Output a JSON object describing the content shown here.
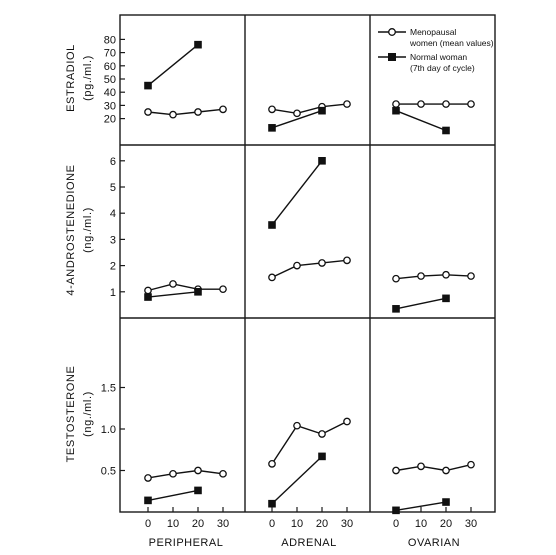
{
  "legend": {
    "menopausal_line1": "Menopausal",
    "menopausal_line2": "women (mean values)",
    "normal_line1": "Normal woman",
    "normal_line2": "(7th day of cycle)"
  },
  "column_labels": [
    "PERIPHERAL",
    "ADRENAL",
    "OVARIAN"
  ],
  "x_ticks": [
    "0",
    "10",
    "20",
    "30"
  ],
  "row_labels": [
    {
      "line1": "ESTRADIOL",
      "line2": "(pg./ml.)"
    },
    {
      "line1": "4-ANDROSTENEDIONE",
      "line2": "(ng./ml.)"
    },
    {
      "line1": "TESTOSTERONE",
      "line2": "(ng./ml.)"
    }
  ],
  "chart_data": [
    {
      "type": "line",
      "title": "",
      "ylabel": "ESTRADIOL (pg./ml.)",
      "ylim": [
        0,
        90
      ],
      "yticks": [
        "20",
        "30",
        "40",
        "50",
        "60",
        "70",
        "80"
      ],
      "ytick_values": [
        20,
        30,
        40,
        50,
        60,
        70,
        80
      ],
      "x": [
        0,
        10,
        20,
        30
      ],
      "panels": [
        {
          "name": "PERIPHERAL",
          "series": [
            {
              "name": "Menopausal women (mean values)",
              "marker": "open-circle",
              "x": [
                0,
                10,
                20,
                30
              ],
              "values": [
                25,
                23,
                25,
                27
              ]
            },
            {
              "name": "Normal woman (7th day of cycle)",
              "marker": "filled-square",
              "x": [
                0,
                20
              ],
              "values": [
                45,
                76
              ]
            }
          ]
        },
        {
          "name": "ADRENAL",
          "series": [
            {
              "name": "Menopausal women (mean values)",
              "marker": "open-circle",
              "x": [
                0,
                10,
                20,
                30
              ],
              "values": [
                27,
                24,
                29,
                31
              ]
            },
            {
              "name": "Normal woman (7th day of cycle)",
              "marker": "filled-square",
              "x": [
                0,
                20
              ],
              "values": [
                13,
                26
              ]
            }
          ]
        },
        {
          "name": "OVARIAN",
          "series": [
            {
              "name": "Menopausal women (mean values)",
              "marker": "open-circle",
              "x": [
                0,
                10,
                20,
                30
              ],
              "values": [
                31,
                31,
                31,
                31
              ]
            },
            {
              "name": "Normal woman (7th day of cycle)",
              "marker": "filled-square",
              "x": [
                0,
                20
              ],
              "values": [
                26,
                11
              ]
            }
          ]
        }
      ]
    },
    {
      "type": "line",
      "title": "",
      "ylabel": "4-ANDROSTENEDIONE (ng./ml.)",
      "ylim": [
        0,
        6.6
      ],
      "yticks": [
        "1",
        "2",
        "3",
        "4",
        "5",
        "6"
      ],
      "ytick_values": [
        1,
        2,
        3,
        4,
        5,
        6
      ],
      "x": [
        0,
        10,
        20,
        30
      ],
      "panels": [
        {
          "name": "PERIPHERAL",
          "series": [
            {
              "name": "Menopausal women (mean values)",
              "marker": "open-circle",
              "x": [
                0,
                10,
                20,
                30
              ],
              "values": [
                1.05,
                1.3,
                1.1,
                1.1
              ]
            },
            {
              "name": "Normal woman (7th day of cycle)",
              "marker": "filled-square",
              "x": [
                0,
                20
              ],
              "values": [
                0.8,
                1.0
              ]
            }
          ]
        },
        {
          "name": "ADRENAL",
          "series": [
            {
              "name": "Menopausal women (mean values)",
              "marker": "open-circle",
              "x": [
                0,
                10,
                20,
                30
              ],
              "values": [
                1.55,
                2.0,
                2.1,
                2.2
              ]
            },
            {
              "name": "Normal woman (7th day of cycle)",
              "marker": "filled-square",
              "x": [
                0,
                20
              ],
              "values": [
                3.55,
                6.0
              ]
            }
          ]
        },
        {
          "name": "OVARIAN",
          "series": [
            {
              "name": "Menopausal women (mean values)",
              "marker": "open-circle",
              "x": [
                0,
                10,
                20,
                30
              ],
              "values": [
                1.5,
                1.6,
                1.65,
                1.6
              ]
            },
            {
              "name": "Normal woman (7th day of cycle)",
              "marker": "filled-square",
              "x": [
                0,
                20
              ],
              "values": [
                0.35,
                0.75
              ]
            }
          ]
        }
      ]
    },
    {
      "type": "line",
      "title": "",
      "ylabel": "TESTOSTERONE (ng./ml.)",
      "ylim": [
        0,
        2.05
      ],
      "yticks": [
        "0.5",
        "1.0",
        "1.5"
      ],
      "ytick_values": [
        0.5,
        1.0,
        1.5
      ],
      "x": [
        0,
        10,
        20,
        30
      ],
      "panels": [
        {
          "name": "PERIPHERAL",
          "series": [
            {
              "name": "Menopausal women (mean values)",
              "marker": "open-circle",
              "x": [
                0,
                10,
                20,
                30
              ],
              "values": [
                0.41,
                0.46,
                0.5,
                0.46
              ]
            },
            {
              "name": "Normal woman (7th day of cycle)",
              "marker": "filled-square",
              "x": [
                0,
                20
              ],
              "values": [
                0.14,
                0.26
              ]
            }
          ]
        },
        {
          "name": "ADRENAL",
          "series": [
            {
              "name": "Menopausal women (mean values)",
              "marker": "open-circle",
              "x": [
                0,
                10,
                20,
                30
              ],
              "values": [
                0.58,
                1.04,
                0.94,
                1.09
              ]
            },
            {
              "name": "Normal woman (7th day of cycle)",
              "marker": "filled-square",
              "x": [
                0,
                20
              ],
              "values": [
                0.1,
                0.67
              ]
            }
          ]
        },
        {
          "name": "OVARIAN",
          "series": [
            {
              "name": "Menopausal women (mean values)",
              "marker": "open-circle",
              "x": [
                0,
                10,
                20,
                30
              ],
              "values": [
                0.5,
                0.55,
                0.5,
                0.57
              ]
            },
            {
              "name": "Normal woman (7th day of cycle)",
              "marker": "filled-square",
              "x": [
                0,
                20
              ],
              "values": [
                0.02,
                0.12
              ]
            }
          ]
        }
      ]
    }
  ]
}
